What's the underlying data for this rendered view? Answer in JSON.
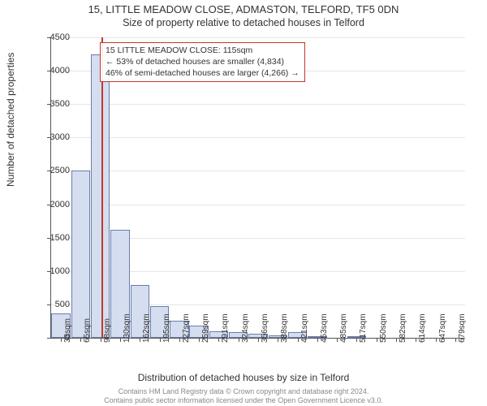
{
  "title": "15, LITTLE MEADOW CLOSE, ADMASTON, TELFORD, TF5 0DN",
  "subtitle": "Size of property relative to detached houses in Telford",
  "ylabel": "Number of detached properties",
  "xlabel": "Distribution of detached houses by size in Telford",
  "attribution_line1": "Contains HM Land Registry data © Crown copyright and database right 2024.",
  "attribution_line2": "Contains public sector information licensed under the Open Government Licence v3.0.",
  "chart": {
    "type": "histogram",
    "ylim": [
      0,
      4500
    ],
    "ytick_step": 500,
    "grid_color": "#e6e6e6",
    "axis_color": "#555555",
    "bar_fill": "#d5ddf0",
    "bar_border": "#6a7fa8",
    "marker_color": "#c0392b",
    "background_color": "#ffffff",
    "x_categories": [
      "33sqm",
      "65sqm",
      "98sqm",
      "130sqm",
      "162sqm",
      "195sqm",
      "227sqm",
      "259sqm",
      "291sqm",
      "324sqm",
      "356sqm",
      "388sqm",
      "421sqm",
      "453sqm",
      "485sqm",
      "517sqm",
      "550sqm",
      "582sqm",
      "614sqm",
      "647sqm",
      "679sqm"
    ],
    "bars": [
      370,
      2500,
      4250,
      1620,
      790,
      480,
      260,
      180,
      100,
      80,
      60,
      40,
      80,
      20,
      0,
      20,
      0,
      0,
      0,
      0,
      0
    ],
    "marker_index": 2.55,
    "info": {
      "line1": "15 LITTLE MEADOW CLOSE: 115sqm",
      "line2": "← 53% of detached houses are smaller (4,834)",
      "line3": "46% of semi-detached houses are larger (4,266) →"
    }
  }
}
